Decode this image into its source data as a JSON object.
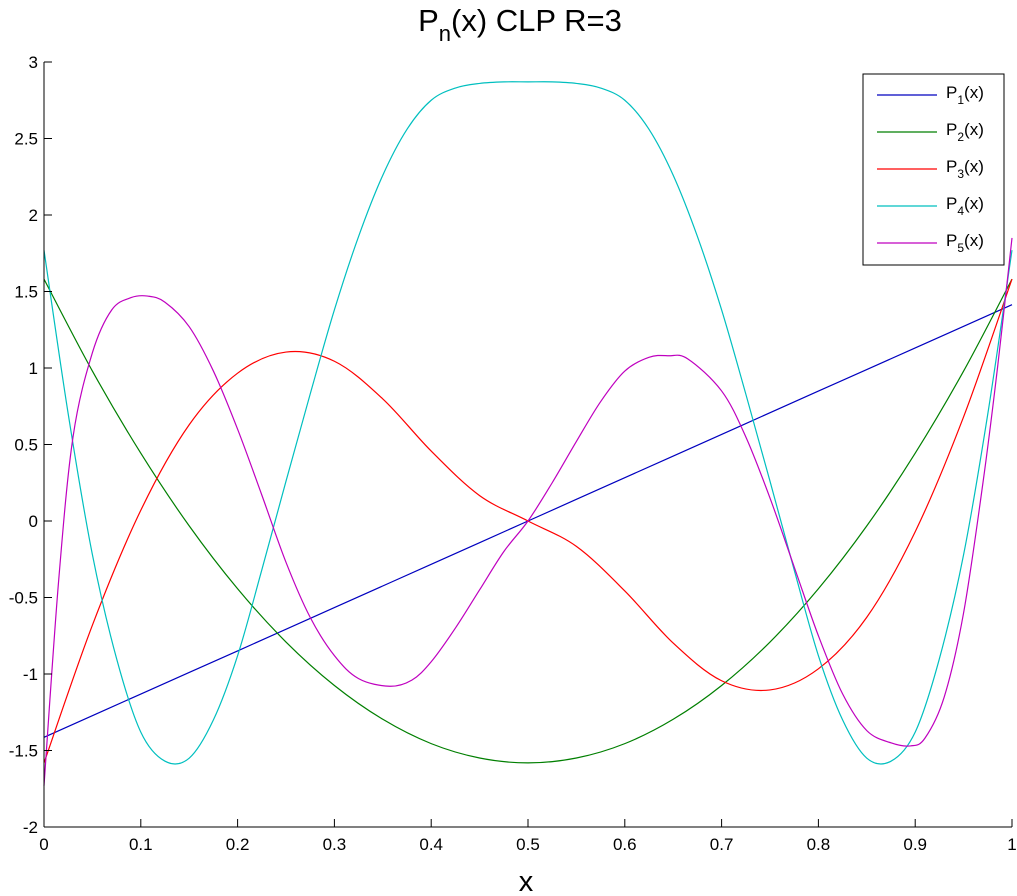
{
  "chart_data": {
    "type": "line",
    "title": {
      "main": "P",
      "sub": "n",
      "rest": "(x) CLP R=3"
    },
    "xlabel": "x",
    "ylabel": "",
    "xlim": [
      0,
      1
    ],
    "ylim": [
      -2,
      3
    ],
    "x_ticks": [
      0,
      0.1,
      0.2,
      0.3,
      0.4,
      0.5,
      0.6,
      0.7,
      0.8,
      0.9,
      1
    ],
    "x_tick_labels": [
      "0",
      "0.1",
      "0.2",
      "0.3",
      "0.4",
      "0.5",
      "0.6",
      "0.7",
      "0.8",
      "0.9",
      "1"
    ],
    "y_ticks": [
      -2,
      -1.5,
      -1,
      -0.5,
      0,
      0.5,
      1,
      1.5,
      2,
      2.5,
      3
    ],
    "y_tick_labels": [
      "-2",
      "-1.5",
      "-1",
      "-0.5",
      "0",
      "0.5",
      "1",
      "1.5",
      "2",
      "2.5",
      "3"
    ],
    "grid": false,
    "legend_position": "top-right",
    "series": [
      {
        "name": "P1(x)",
        "label_main": "P",
        "label_sub": "1",
        "label_rest": "(x)",
        "color": "#0000bf",
        "x": [
          0,
          0.1,
          0.2,
          0.3,
          0.4,
          0.5,
          0.6,
          0.7,
          0.8,
          0.9,
          1
        ],
        "y": [
          -1.414,
          -1.131,
          -0.849,
          -0.566,
          -0.283,
          0,
          0.283,
          0.566,
          0.849,
          1.131,
          1.414
        ]
      },
      {
        "name": "P2(x)",
        "label_main": "P",
        "label_sub": "2",
        "label_rest": "(x)",
        "color": "#007f00",
        "x": [
          0,
          0.05,
          0.1,
          0.15,
          0.2,
          0.25,
          0.3,
          0.35,
          0.4,
          0.45,
          0.5,
          0.55,
          0.6,
          0.65,
          0.7,
          0.75,
          0.8,
          0.85,
          0.9,
          0.95,
          1
        ],
        "y": [
          1.581,
          0.98,
          0.443,
          -0.032,
          -0.443,
          -0.791,
          -1.075,
          -1.296,
          -1.455,
          -1.549,
          -1.581,
          -1.549,
          -1.455,
          -1.296,
          -1.075,
          -0.791,
          -0.443,
          -0.032,
          0.443,
          0.98,
          1.581
        ]
      },
      {
        "name": "P3(x)",
        "label_main": "P",
        "label_sub": "3",
        "label_rest": "(x)",
        "color": "#ff0000",
        "x": [
          0,
          0.05,
          0.1,
          0.15,
          0.2,
          0.25,
          0.3,
          0.35,
          0.4,
          0.45,
          0.5,
          0.55,
          0.6,
          0.65,
          0.7,
          0.75,
          0.8,
          0.85,
          0.9,
          0.95,
          1
        ],
        "y": [
          -1.581,
          -0.681,
          0.07,
          0.629,
          0.966,
          1.104,
          1.044,
          0.798,
          0.457,
          0.166,
          0,
          -0.166,
          -0.457,
          -0.798,
          -1.044,
          -1.104,
          -0.966,
          -0.629,
          -0.07,
          0.681,
          1.581
        ]
      },
      {
        "name": "P4(x)",
        "label_main": "P",
        "label_sub": "4",
        "label_rest": "(x)",
        "color": "#00bfbf",
        "x": [
          0,
          0.025,
          0.05,
          0.075,
          0.1,
          0.125,
          0.15,
          0.175,
          0.2,
          0.225,
          0.25,
          0.275,
          0.3,
          0.325,
          0.35,
          0.375,
          0.4,
          0.425,
          0.45,
          0.475,
          0.5,
          0.525,
          0.55,
          0.575,
          0.6,
          0.625,
          0.65,
          0.675,
          0.7,
          0.725,
          0.75,
          0.775,
          0.8,
          0.825,
          0.85,
          0.875,
          0.9,
          0.925,
          0.95,
          0.975,
          1
        ],
        "y": [
          1.77,
          0.7,
          -0.22,
          -0.9,
          -1.38,
          -1.57,
          -1.55,
          -1.3,
          -0.88,
          -0.32,
          0.26,
          0.83,
          1.38,
          1.86,
          2.26,
          2.56,
          2.75,
          2.83,
          2.86,
          2.87,
          2.87,
          2.87,
          2.86,
          2.83,
          2.75,
          2.56,
          2.26,
          1.86,
          1.38,
          0.83,
          0.26,
          -0.32,
          -0.88,
          -1.3,
          -1.55,
          -1.57,
          -1.38,
          -0.9,
          -0.22,
          0.7,
          1.77
        ]
      },
      {
        "name": "P5(x)",
        "label_main": "P",
        "label_sub": "5",
        "label_rest": "(x)",
        "color": "#bf00bf",
        "x": [
          0,
          0.015,
          0.03,
          0.05,
          0.07,
          0.09,
          0.107,
          0.125,
          0.15,
          0.175,
          0.2,
          0.225,
          0.25,
          0.275,
          0.3,
          0.325,
          0.357,
          0.38,
          0.4,
          0.425,
          0.45,
          0.475,
          0.5,
          0.525,
          0.55,
          0.575,
          0.6,
          0.625,
          0.645,
          0.665,
          0.7,
          0.725,
          0.75,
          0.775,
          0.8,
          0.825,
          0.85,
          0.875,
          0.895,
          0.91,
          0.93,
          0.95,
          0.97,
          0.985,
          1
        ],
        "y": [
          -1.73,
          -0.4,
          0.55,
          1.1,
          1.38,
          1.46,
          1.47,
          1.43,
          1.27,
          0.98,
          0.6,
          0.17,
          -0.27,
          -0.63,
          -0.88,
          -1.03,
          -1.08,
          -1.04,
          -0.92,
          -0.7,
          -0.45,
          -0.2,
          0,
          0.25,
          0.52,
          0.78,
          0.98,
          1.07,
          1.08,
          1.06,
          0.85,
          0.55,
          0.15,
          -0.3,
          -0.75,
          -1.13,
          -1.37,
          -1.45,
          -1.47,
          -1.42,
          -1.15,
          -0.6,
          0.25,
          1.0,
          1.85
        ]
      }
    ]
  }
}
